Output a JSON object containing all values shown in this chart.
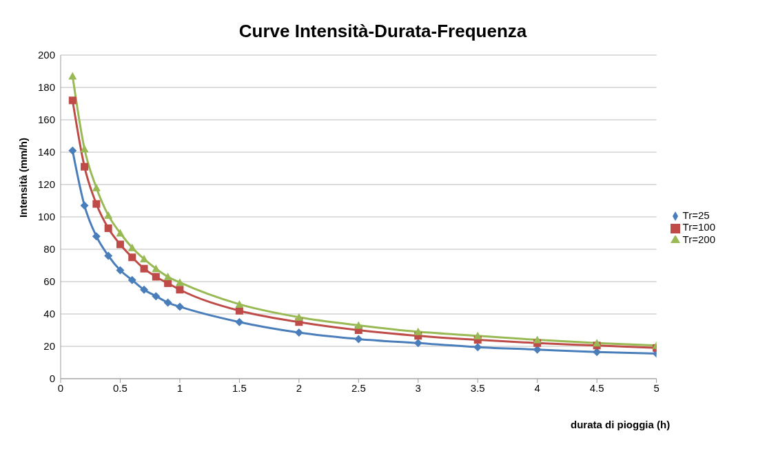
{
  "chart_data": {
    "type": "line",
    "title": "Curve Intensità-Durata-Frequenza",
    "xlabel": "durata di pioggia (h)",
    "ylabel": "Intensità (mm/h)",
    "x": [
      0.1,
      0.2,
      0.3,
      0.4,
      0.5,
      0.6,
      0.7,
      0.8,
      0.9,
      1,
      1.5,
      2,
      2.5,
      3,
      3.5,
      4,
      4.5,
      5
    ],
    "series": [
      {
        "name": "Tr=25",
        "color": "#4a7ebb",
        "marker": "diamond",
        "values": [
          141,
          107,
          88,
          76,
          67,
          61,
          55,
          51,
          47,
          44.5,
          35,
          28.5,
          24.5,
          22,
          19.5,
          18,
          16.5,
          15.5
        ]
      },
      {
        "name": "Tr=100",
        "color": "#be4b48",
        "marker": "square",
        "values": [
          172,
          131,
          108,
          93,
          83,
          75,
          68,
          63,
          59,
          55,
          42,
          35,
          30,
          26.5,
          24,
          22,
          20.5,
          19
        ]
      },
      {
        "name": "Tr=200",
        "color": "#98b954",
        "marker": "triangle",
        "values": [
          187,
          142,
          118,
          101,
          90,
          81,
          74,
          68,
          63,
          59.5,
          46,
          38,
          33,
          29,
          26.5,
          24,
          22,
          20.5
        ]
      }
    ],
    "xlim": [
      0,
      5
    ],
    "xticks": [
      0,
      0.5,
      1,
      1.5,
      2,
      2.5,
      3,
      3.5,
      4,
      4.5,
      5
    ],
    "ylim": [
      0,
      200
    ],
    "yticks": [
      0,
      20,
      40,
      60,
      80,
      100,
      120,
      140,
      160,
      180,
      200
    ],
    "grid": "y",
    "legend": "right",
    "line_style": "solid"
  }
}
